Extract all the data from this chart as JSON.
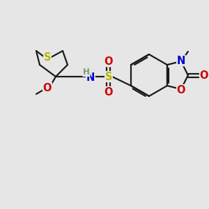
{
  "bg_color": "#e6e6e6",
  "bond_color": "#1a1a1a",
  "bond_width": 1.6,
  "atom_colors": {
    "S_thio": "#b8b800",
    "S_sulfo": "#b8b800",
    "N": "#0000cc",
    "O": "#cc0000",
    "H": "#7a9a7a",
    "C": "#1a1a1a"
  },
  "font_size_atom": 10.5,
  "font_size_small": 8.5
}
